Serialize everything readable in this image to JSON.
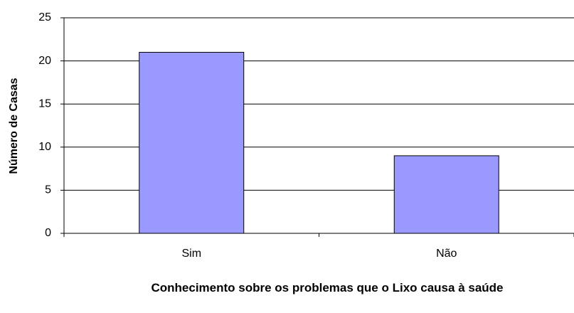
{
  "chart_data": {
    "type": "bar",
    "categories": [
      "Sim",
      "Não"
    ],
    "values": [
      21,
      9
    ],
    "color": "#9999ff",
    "xlabel": "Conhecimento sobre os problemas que o Lixo causa à saúde",
    "ylabel": "Número de Casas",
    "ylim": [
      0,
      25
    ],
    "yticks": [
      0,
      5,
      10,
      15,
      20,
      25
    ],
    "grid": true
  }
}
